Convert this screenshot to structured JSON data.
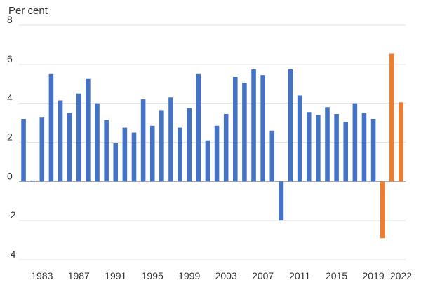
{
  "chart_data": {
    "type": "bar",
    "ylabel": "Per cent",
    "ylim": [
      -4,
      8
    ],
    "yticks": [
      -4,
      -2,
      0,
      2,
      4,
      6,
      8
    ],
    "grid": true,
    "x": [
      1981,
      1982,
      1983,
      1984,
      1985,
      1986,
      1987,
      1988,
      1989,
      1990,
      1991,
      1992,
      1993,
      1994,
      1995,
      1996,
      1997,
      1998,
      1999,
      2000,
      2001,
      2002,
      2003,
      2004,
      2005,
      2006,
      2007,
      2008,
      2009,
      2010,
      2011,
      2012,
      2013,
      2014,
      2015,
      2016,
      2017,
      2018,
      2019,
      2020,
      2021,
      2022
    ],
    "x_tick_labels": [
      "1983",
      "1987",
      "1991",
      "1995",
      "1999",
      "2003",
      "2007",
      "2011",
      "2015",
      "2019",
      "2022"
    ],
    "series": [
      {
        "color": "#4472c4",
        "values": [
          3.2,
          0.05,
          3.3,
          5.5,
          4.15,
          3.5,
          4.5,
          5.25,
          4.0,
          3.15,
          1.95,
          2.75,
          2.5,
          4.2,
          2.85,
          3.65,
          4.3,
          2.75,
          3.75,
          5.5,
          2.1,
          2.85,
          3.45,
          5.35,
          5.05,
          5.75,
          5.45,
          2.6,
          -2.0,
          5.75,
          4.4,
          3.55,
          3.4,
          3.8,
          3.45,
          3.05,
          4.0,
          3.5,
          3.2,
          null,
          null,
          null
        ]
      },
      {
        "color": "#ed7d31",
        "values": [
          null,
          null,
          null,
          null,
          null,
          null,
          null,
          null,
          null,
          null,
          null,
          null,
          null,
          null,
          null,
          null,
          null,
          null,
          null,
          null,
          null,
          null,
          null,
          null,
          null,
          null,
          null,
          null,
          null,
          null,
          null,
          null,
          null,
          null,
          null,
          null,
          null,
          null,
          null,
          -2.9,
          6.55,
          4.05
        ]
      }
    ]
  }
}
